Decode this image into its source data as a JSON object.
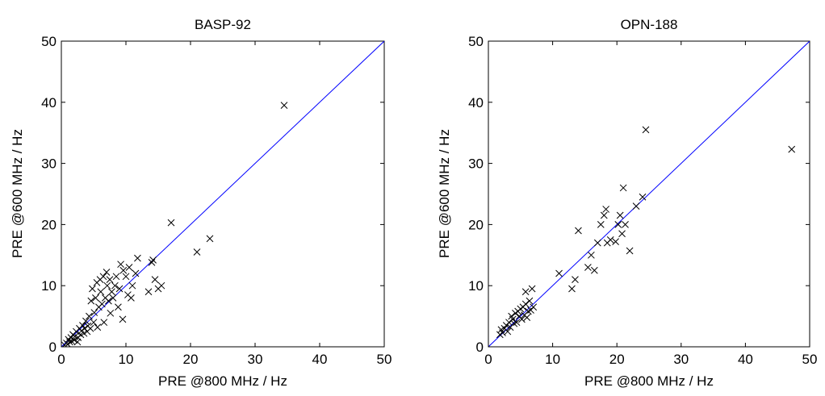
{
  "figure": {
    "background": "#ffffff",
    "axis_color": "#000000",
    "marker_color": "#000000",
    "line_color": "#0000ff"
  },
  "chart_data": [
    {
      "type": "scatter",
      "title": "BASP-92",
      "xlabel": "PRE @800 MHz / Hz",
      "ylabel": "PRE @600 MHz / Hz",
      "xlim": [
        0,
        50
      ],
      "ylim": [
        0,
        50
      ],
      "xticks": [
        "0",
        "10",
        "20",
        "30",
        "40",
        "50"
      ],
      "yticks": [
        "0",
        "10",
        "20",
        "30",
        "40",
        "50"
      ],
      "grid": false,
      "marker": "x",
      "reference_line": {
        "x": [
          0,
          50
        ],
        "y": [
          0,
          50
        ]
      },
      "points": [
        [
          0.5,
          0.3
        ],
        [
          0.8,
          0.6
        ],
        [
          1.0,
          0.4
        ],
        [
          1.1,
          1.2
        ],
        [
          1.3,
          0.8
        ],
        [
          1.5,
          1.5
        ],
        [
          1.6,
          0.9
        ],
        [
          1.8,
          2.0
        ],
        [
          2.0,
          1.1
        ],
        [
          2.1,
          1.7
        ],
        [
          2.3,
          2.5
        ],
        [
          2.5,
          0.8
        ],
        [
          2.6,
          1.5
        ],
        [
          2.8,
          3.0
        ],
        [
          3.0,
          2.0
        ],
        [
          3.1,
          2.6
        ],
        [
          3.3,
          3.5
        ],
        [
          3.5,
          2.2
        ],
        [
          3.6,
          3.0
        ],
        [
          3.8,
          4.2
        ],
        [
          4.0,
          2.5
        ],
        [
          4.1,
          3.4
        ],
        [
          4.3,
          5.0
        ],
        [
          4.5,
          3.0
        ],
        [
          4.6,
          7.5
        ],
        [
          4.8,
          9.5
        ],
        [
          5.0,
          4.0
        ],
        [
          5.1,
          5.6
        ],
        [
          5.3,
          8.0
        ],
        [
          5.5,
          10.5
        ],
        [
          5.6,
          3.2
        ],
        [
          5.8,
          6.5
        ],
        [
          6.0,
          11.0
        ],
        [
          6.1,
          9.0
        ],
        [
          6.3,
          7.0
        ],
        [
          6.5,
          11.5
        ],
        [
          6.6,
          4.0
        ],
        [
          6.8,
          8.0
        ],
        [
          7.0,
          12.2
        ],
        [
          7.1,
          10.0
        ],
        [
          7.3,
          7.5
        ],
        [
          7.5,
          11.0
        ],
        [
          7.6,
          5.5
        ],
        [
          7.8,
          9.0
        ],
        [
          8.0,
          8.0
        ],
        [
          8.3,
          10.0
        ],
        [
          8.5,
          11.5
        ],
        [
          8.8,
          6.5
        ],
        [
          9.0,
          9.5
        ],
        [
          9.2,
          13.5
        ],
        [
          9.5,
          4.5
        ],
        [
          9.6,
          12.5
        ],
        [
          10.0,
          11.5
        ],
        [
          10.3,
          8.5
        ],
        [
          10.5,
          13.0
        ],
        [
          10.8,
          8.0
        ],
        [
          11.0,
          10.0
        ],
        [
          11.5,
          12.0
        ],
        [
          11.8,
          14.5
        ],
        [
          13.5,
          9.0
        ],
        [
          14.0,
          13.8
        ],
        [
          14.2,
          14.2
        ],
        [
          14.5,
          11.0
        ],
        [
          15.0,
          9.5
        ],
        [
          15.5,
          10.0
        ],
        [
          17.0,
          20.3
        ],
        [
          21.0,
          15.5
        ],
        [
          23.0,
          17.7
        ],
        [
          34.5,
          39.5
        ]
      ]
    },
    {
      "type": "scatter",
      "title": "OPN-188",
      "xlabel": "PRE @800 MHz / Hz",
      "ylabel": "PRE @600 MHz / Hz",
      "xlim": [
        0,
        50
      ],
      "ylim": [
        0,
        50
      ],
      "xticks": [
        "0",
        "10",
        "20",
        "30",
        "40",
        "50"
      ],
      "yticks": [
        "0",
        "10",
        "20",
        "30",
        "40",
        "50"
      ],
      "grid": false,
      "marker": "x",
      "reference_line": {
        "x": [
          0,
          50
        ],
        "y": [
          0,
          50
        ]
      },
      "points": [
        [
          1.8,
          2.0
        ],
        [
          2.0,
          2.8
        ],
        [
          2.2,
          2.3
        ],
        [
          2.5,
          3.0
        ],
        [
          2.8,
          3.5
        ],
        [
          3.0,
          2.5
        ],
        [
          3.2,
          4.0
        ],
        [
          3.4,
          3.2
        ],
        [
          3.6,
          5.0
        ],
        [
          3.8,
          4.5
        ],
        [
          4.0,
          3.8
        ],
        [
          4.2,
          5.5
        ],
        [
          4.4,
          4.0
        ],
        [
          4.6,
          5.8
        ],
        [
          4.8,
          5.0
        ],
        [
          5.0,
          6.2
        ],
        [
          5.2,
          4.5
        ],
        [
          5.4,
          6.5
        ],
        [
          5.6,
          5.2
        ],
        [
          5.8,
          7.0
        ],
        [
          6.0,
          4.8
        ],
        [
          6.2,
          5.8
        ],
        [
          6.4,
          7.5
        ],
        [
          6.6,
          6.0
        ],
        [
          6.8,
          9.5
        ],
        [
          7.0,
          6.5
        ],
        [
          5.8,
          9.0
        ],
        [
          11.0,
          12.0
        ],
        [
          13.0,
          9.5
        ],
        [
          13.5,
          11.0
        ],
        [
          14.0,
          19.0
        ],
        [
          15.5,
          13.0
        ],
        [
          16.0,
          15.0
        ],
        [
          16.5,
          12.5
        ],
        [
          17.0,
          17.0
        ],
        [
          17.5,
          20.0
        ],
        [
          18.0,
          21.5
        ],
        [
          18.3,
          22.5
        ],
        [
          18.5,
          17.0
        ],
        [
          19.0,
          17.5
        ],
        [
          19.8,
          17.2
        ],
        [
          20.2,
          20.0
        ],
        [
          20.5,
          21.5
        ],
        [
          20.8,
          18.5
        ],
        [
          21.0,
          26.0
        ],
        [
          21.3,
          20.0
        ],
        [
          22.0,
          15.7
        ],
        [
          23.0,
          23.0
        ],
        [
          24.0,
          24.5
        ],
        [
          24.5,
          35.5
        ],
        [
          47.2,
          32.3
        ]
      ]
    }
  ]
}
